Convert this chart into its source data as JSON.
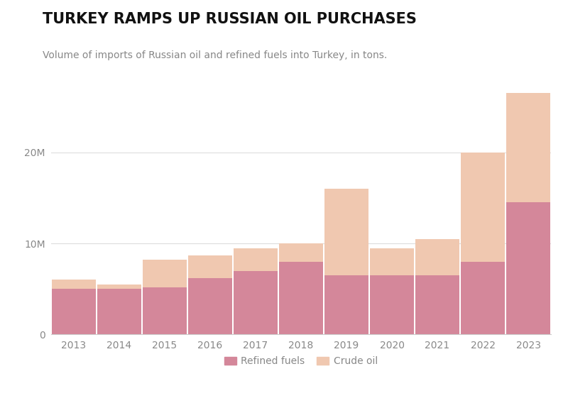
{
  "title": "TURKEY RAMPS UP RUSSIAN OIL PURCHASES",
  "subtitle": "Volume of imports of Russian oil and refined fuels into Turkey, in tons.",
  "years": [
    2013,
    2014,
    2015,
    2016,
    2017,
    2018,
    2019,
    2020,
    2021,
    2022,
    2023
  ],
  "refined_fuels": [
    5000000,
    5000000,
    5200000,
    6200000,
    7000000,
    8000000,
    6500000,
    6500000,
    6500000,
    8000000,
    14500000
  ],
  "crude_oil": [
    1000000,
    500000,
    3000000,
    2500000,
    2500000,
    2000000,
    9500000,
    3000000,
    4000000,
    12000000,
    12000000
  ],
  "refined_fuels_color": "#d4879a",
  "crude_oil_color": "#f0c8b0",
  "background_color": "#ffffff",
  "legend_refined_fuels": "Refined fuels",
  "legend_crude_oil": "Crude oil",
  "ylabel_ticks": [
    0,
    10000000,
    20000000
  ],
  "ylabel_labels": [
    "0",
    "10M",
    "20M"
  ],
  "ylim": [
    0,
    27000000
  ],
  "bar_width": 0.98,
  "title_fontsize": 15,
  "subtitle_fontsize": 10,
  "tick_fontsize": 10
}
